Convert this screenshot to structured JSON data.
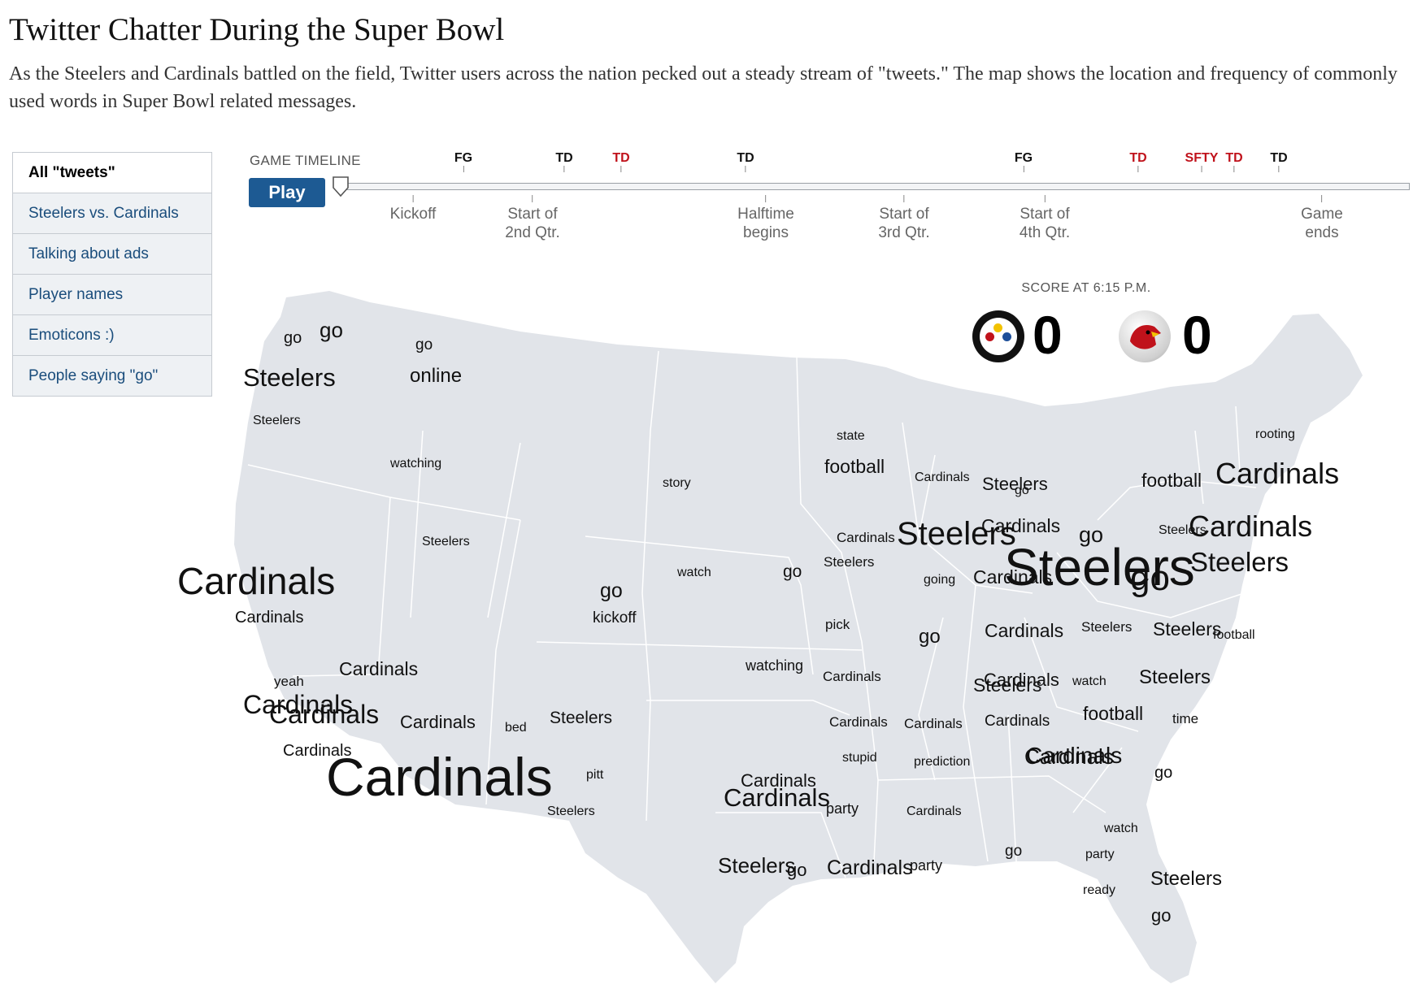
{
  "title": "Twitter Chatter During the Super Bowl",
  "description": "As the Steelers and Cardinals battled on the field, Twitter users across the nation pecked out a steady stream of \"tweets.\" The map shows the location and frequency of commonly used words in Super Bowl related messages.",
  "menu": {
    "items": [
      {
        "label": "All \"tweets\"",
        "active": true
      },
      {
        "label": "Steelers vs. Cardinals",
        "active": false
      },
      {
        "label": "Talking about ads",
        "active": false
      },
      {
        "label": "Player names",
        "active": false
      },
      {
        "label": "Emoticons :)",
        "active": false
      },
      {
        "label": "People saying \"go\"",
        "active": false
      }
    ]
  },
  "timeline": {
    "label": "GAME TIMELINE",
    "play_label": "Play",
    "events": [
      {
        "label": "FG",
        "team": "steelers"
      },
      {
        "label": "TD",
        "team": "steelers"
      },
      {
        "label": "TD",
        "team": "cardinals"
      },
      {
        "label": "TD",
        "team": "steelers"
      },
      {
        "label": "FG",
        "team": "steelers"
      },
      {
        "label": "TD",
        "team": "cardinals"
      },
      {
        "label": "SFTY",
        "team": "cardinals"
      },
      {
        "label": "TD",
        "team": "cardinals"
      },
      {
        "label": "TD",
        "team": "steelers"
      }
    ],
    "milestones": [
      "Kickoff",
      "Start of\n2nd Qtr.",
      "Halftime\nbegins",
      "Start of\n3rd Qtr.",
      "Start of\n4th Qtr.",
      "Game\nends"
    ]
  },
  "score": {
    "caption": "SCORE AT 6:15 P.M.",
    "steelers": "0",
    "cardinals": "0"
  },
  "colors": {
    "steelers_event": "#111111",
    "cardinals_event": "#c0121b",
    "land": "#e1e4e9",
    "borders": "#ffffff",
    "accent": "#1d5a93"
  },
  "words": [
    {
      "text": "go",
      "size": 20
    },
    {
      "text": "go",
      "size": 26
    },
    {
      "text": "go",
      "size": 19
    },
    {
      "text": "Steelers",
      "size": 31
    },
    {
      "text": "online",
      "size": 24
    },
    {
      "text": "Steelers",
      "size": 16
    },
    {
      "text": "watching",
      "size": 16
    },
    {
      "text": "story",
      "size": 16
    },
    {
      "text": "state",
      "size": 16
    },
    {
      "text": "football",
      "size": 23
    },
    {
      "text": "Cardinals",
      "size": 16
    },
    {
      "text": "go",
      "size": 16
    },
    {
      "text": "rooting",
      "size": 16
    },
    {
      "text": "football",
      "size": 23
    },
    {
      "text": "Cardinals",
      "size": 36
    },
    {
      "text": "Steelers",
      "size": 16
    },
    {
      "text": "Steelers",
      "size": 16
    },
    {
      "text": "watch",
      "size": 16
    },
    {
      "text": "go",
      "size": 21
    },
    {
      "text": "Cardinals",
      "size": 17
    },
    {
      "text": "Steelers",
      "size": 17
    },
    {
      "text": "Steelers",
      "size": 40
    },
    {
      "text": "Cardinals",
      "size": 23
    },
    {
      "text": "go",
      "size": 27
    },
    {
      "text": "Steelers",
      "size": 22
    },
    {
      "text": "Cardinals",
      "size": 36
    },
    {
      "text": "Steelers",
      "size": 33
    },
    {
      "text": "Cardinals",
      "size": 46
    },
    {
      "text": "Cardinals",
      "size": 20
    },
    {
      "text": "go",
      "size": 25
    },
    {
      "text": "kickoff",
      "size": 19
    },
    {
      "text": "going",
      "size": 16
    },
    {
      "text": "Cardinals",
      "size": 23
    },
    {
      "text": "Steelers",
      "size": 64
    },
    {
      "text": "go",
      "size": 44
    },
    {
      "text": "pick",
      "size": 17
    },
    {
      "text": "go",
      "size": 24
    },
    {
      "text": "Cardinals",
      "size": 23
    },
    {
      "text": "Steelers",
      "size": 17
    },
    {
      "text": "Steelers",
      "size": 23
    },
    {
      "text": "football",
      "size": 16
    },
    {
      "text": "Cardinals",
      "size": 22
    },
    {
      "text": "watching",
      "size": 18
    },
    {
      "text": "Cardinals",
      "size": 17
    },
    {
      "text": "yeah",
      "size": 17
    },
    {
      "text": "Steelers",
      "size": 23
    },
    {
      "text": "watch",
      "size": 16
    },
    {
      "text": "Steelers",
      "size": 24
    },
    {
      "text": "Cardinals",
      "size": 32
    },
    {
      "text": "Cardinals",
      "size": 32
    },
    {
      "text": "Cardinals",
      "size": 23
    },
    {
      "text": "bed",
      "size": 16
    },
    {
      "text": "Steelers",
      "size": 21
    },
    {
      "text": "Cardinals",
      "size": 22
    },
    {
      "text": "Cardinals",
      "size": 17
    },
    {
      "text": "Cardinals",
      "size": 17
    },
    {
      "text": "Cardinals",
      "size": 19
    },
    {
      "text": "football",
      "size": 23
    },
    {
      "text": "time",
      "size": 17
    },
    {
      "text": "Cardinals",
      "size": 26
    },
    {
      "text": "Cardinals",
      "size": 66
    },
    {
      "text": "stupid",
      "size": 16
    },
    {
      "text": "prediction",
      "size": 16
    },
    {
      "text": "Cardinals",
      "size": 20
    },
    {
      "text": "Cardinals",
      "size": 28
    },
    {
      "text": "pitt",
      "size": 16
    },
    {
      "text": "Cardinals",
      "size": 22
    },
    {
      "text": "go",
      "size": 20
    },
    {
      "text": "Cardinals",
      "size": 31
    },
    {
      "text": "party",
      "size": 18
    },
    {
      "text": "Steelers",
      "size": 16
    },
    {
      "text": "Cardinals",
      "size": 16
    },
    {
      "text": "watch",
      "size": 16
    },
    {
      "text": "go",
      "size": 19
    },
    {
      "text": "party",
      "size": 16
    },
    {
      "text": "party",
      "size": 18
    },
    {
      "text": "Cardinals",
      "size": 25
    },
    {
      "text": "Steelers",
      "size": 26
    },
    {
      "text": "go",
      "size": 22
    },
    {
      "text": "Steelers",
      "size": 24
    },
    {
      "text": "ready",
      "size": 16
    },
    {
      "text": "go",
      "size": 22
    }
  ]
}
